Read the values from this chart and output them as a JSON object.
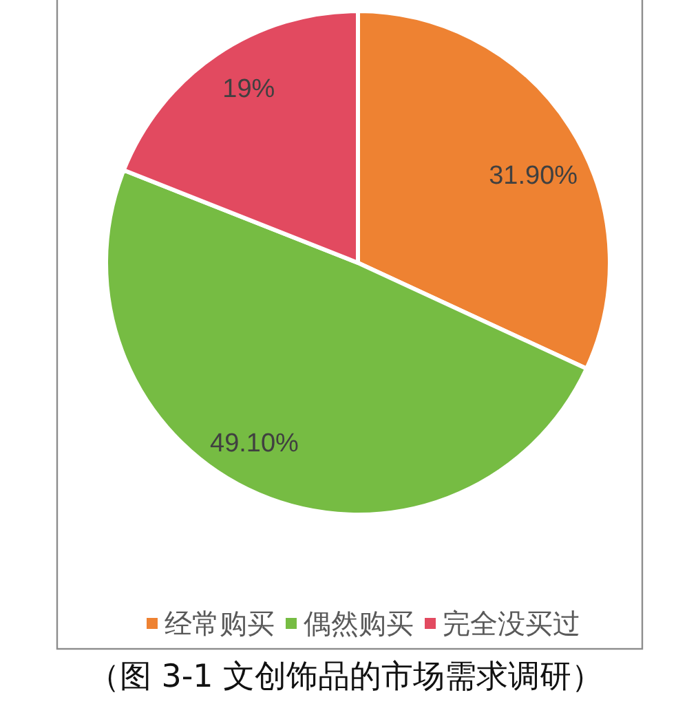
{
  "chart_data": {
    "type": "pie",
    "categories": [
      "经常购买",
      "偶然购买",
      "完全没买过"
    ],
    "values": [
      31.9,
      49.1,
      19
    ],
    "colors": [
      "#ee8232",
      "#76bc43",
      "#e24a60"
    ],
    "value_labels": [
      "31.90%",
      "49.10%",
      "19%"
    ],
    "legend": "bottom",
    "annotations": [
      "（图 3-1 文创饰品的市场需求调研）"
    ]
  }
}
